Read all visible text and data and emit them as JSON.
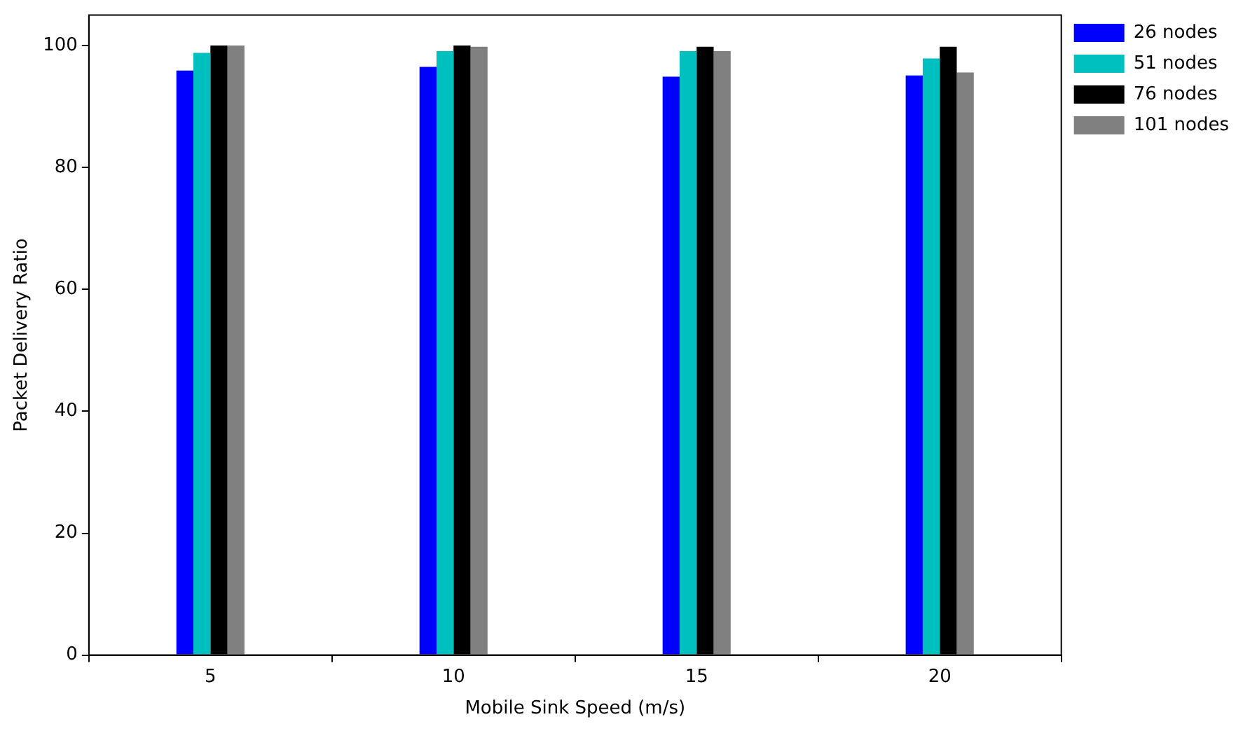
{
  "chart_data": {
    "type": "bar",
    "xlabel": "Mobile Sink Speed (m/s)",
    "ylabel": "Packet Delivery Ratio",
    "categories": [
      "5",
      "10",
      "15",
      "20"
    ],
    "series": [
      {
        "name": "26 nodes",
        "color": "#0000ff",
        "values": [
          95.9,
          96.5,
          94.9,
          95.1
        ]
      },
      {
        "name": "51 nodes",
        "color": "#00bfbf",
        "values": [
          98.8,
          99.1,
          99.1,
          97.9
        ]
      },
      {
        "name": "76 nodes",
        "color": "#000000",
        "values": [
          100,
          100,
          99.8,
          99.8
        ]
      },
      {
        "name": "101 nodes",
        "color": "#808080",
        "values": [
          100,
          99.8,
          99.1,
          95.6
        ]
      }
    ],
    "ylim": [
      0,
      105
    ],
    "yticks": [
      0,
      20,
      40,
      60,
      80,
      100
    ],
    "grid": false,
    "legend": "top right"
  }
}
